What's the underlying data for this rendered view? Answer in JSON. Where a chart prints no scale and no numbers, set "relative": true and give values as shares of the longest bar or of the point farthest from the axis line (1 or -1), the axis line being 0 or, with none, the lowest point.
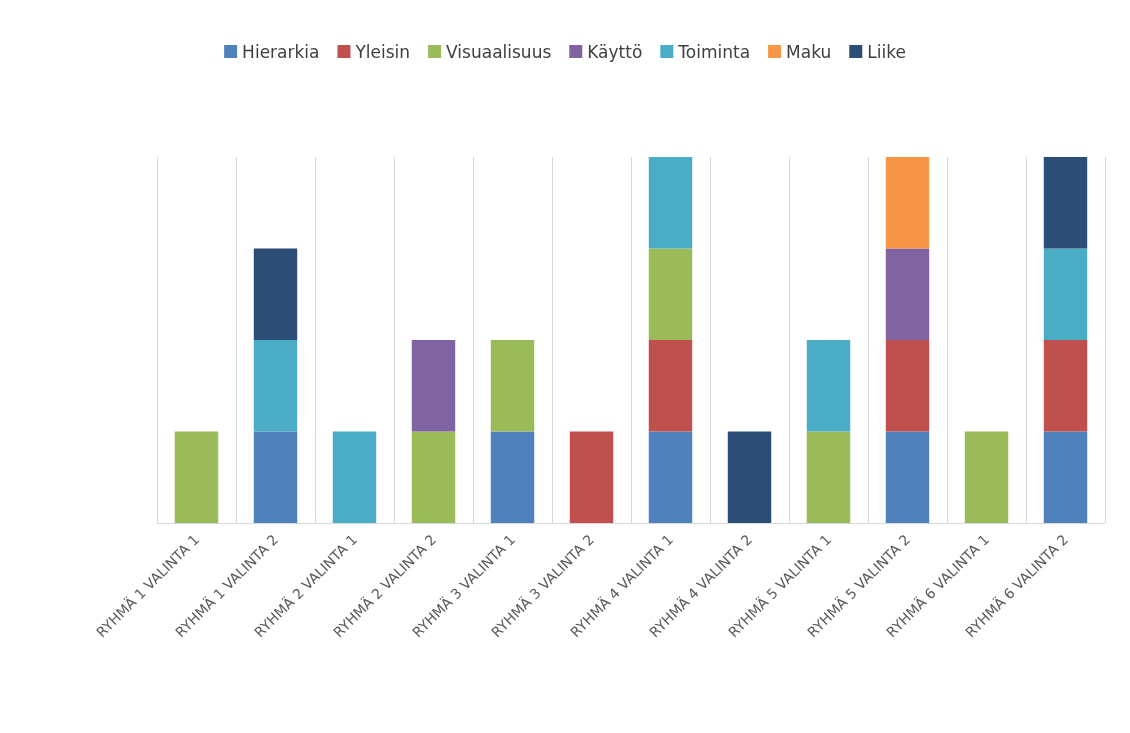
{
  "chart_data": {
    "type": "bar",
    "stacked": true,
    "relative": true,
    "grid": "x",
    "legend": "top",
    "categories": [
      "RYHMÄ 1 VALINTA 1",
      "RYHMÄ 1 VALINTA 2",
      "RYHMÄ 2 VALINTA 1",
      "RYHMÄ 2 VALINTA 2",
      "RYHMÄ 3 VALINTA 1",
      "RYHMÄ 3 VALINTA 2",
      "RYHMÄ 4 VALINTA 1",
      "RYHMÄ 4 VALINTA 2",
      "RYHMÄ 5 VALINTA 1",
      "RYHMÄ 5 VALINTA 2",
      "RYHMÄ 6 VALINTA 1",
      "RYHMÄ 6 VALINTA 2"
    ],
    "series": [
      {
        "name": "Hierarkia",
        "color": "#4f81bd",
        "values": [
          null,
          0.25,
          null,
          null,
          0.25,
          null,
          0.25,
          null,
          null,
          0.25,
          null,
          0.25
        ]
      },
      {
        "name": "Yleisin",
        "color": "#c0504d",
        "values": [
          null,
          null,
          null,
          null,
          null,
          0.25,
          0.25,
          null,
          null,
          0.25,
          null,
          0.25
        ]
      },
      {
        "name": "Visuaalisuus",
        "color": "#9bbb59",
        "values": [
          0.25,
          null,
          null,
          0.25,
          0.25,
          null,
          0.25,
          null,
          0.25,
          null,
          0.25,
          null
        ]
      },
      {
        "name": "Käyttö",
        "color": "#8064a2",
        "values": [
          null,
          null,
          null,
          0.25,
          null,
          null,
          null,
          null,
          null,
          0.25,
          null,
          null
        ]
      },
      {
        "name": "Toiminta",
        "color": "#4bacc6",
        "values": [
          null,
          0.25,
          0.25,
          null,
          null,
          null,
          0.25,
          null,
          0.25,
          null,
          null,
          0.25
        ]
      },
      {
        "name": "Maku",
        "color": "#f79646",
        "values": [
          null,
          null,
          null,
          null,
          null,
          null,
          null,
          null,
          null,
          0.25,
          null,
          null
        ]
      },
      {
        "name": "Liike",
        "color": "#2c4d75",
        "values": [
          null,
          0.25,
          null,
          null,
          null,
          null,
          null,
          0.25,
          null,
          null,
          null,
          0.25
        ]
      }
    ]
  }
}
